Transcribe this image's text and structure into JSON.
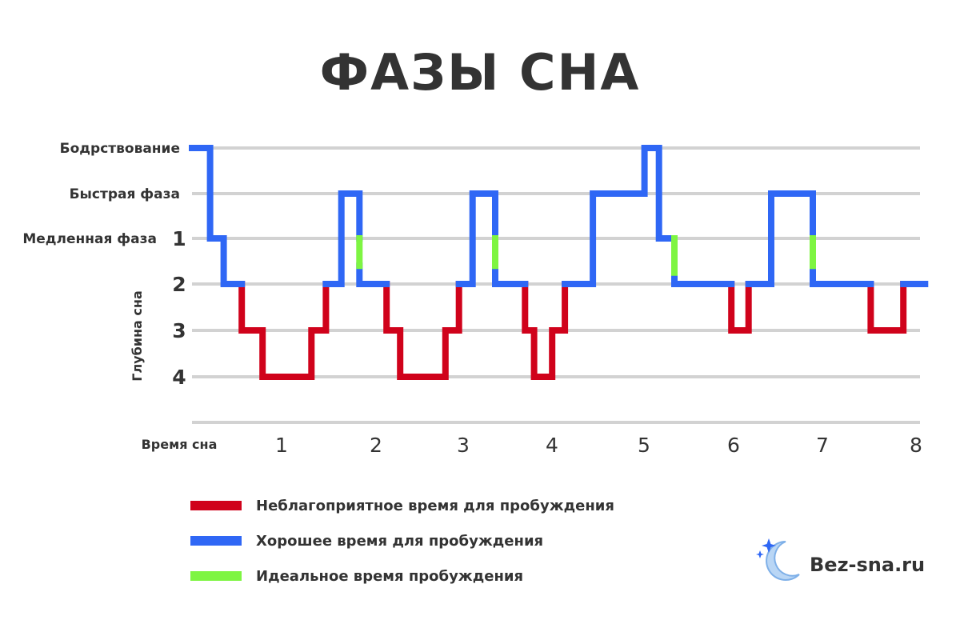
{
  "chart_data": {
    "type": "line",
    "title": "ФАЗЫ СНА",
    "xlabel": "Время сна",
    "ylabel": "Глубина сна",
    "x_ticks": [
      "1",
      "2",
      "3",
      "4",
      "5",
      "6",
      "7",
      "8"
    ],
    "xlim": [
      0,
      8
    ],
    "y_levels": [
      {
        "value": -2,
        "label": "Бодрствование"
      },
      {
        "value": -1,
        "label": "Быстрая фаза"
      },
      {
        "value": 1,
        "label": "Медленная фаза",
        "number": "1"
      },
      {
        "value": 2,
        "label": "",
        "number": "2"
      },
      {
        "value": 3,
        "label": "",
        "number": "3"
      },
      {
        "value": 4,
        "label": "",
        "number": "4"
      }
    ],
    "grid": true,
    "colors": {
      "unfavorable": "#d0021b",
      "good": "#2f67f5",
      "ideal": "#7ef542",
      "grid": "#d2d2d2",
      "text": "#333333"
    },
    "segments": [
      {
        "category": "good",
        "points": [
          [
            0.0,
            -2
          ],
          [
            0.2,
            -2
          ],
          [
            0.2,
            1
          ],
          [
            0.35,
            1
          ],
          [
            0.35,
            2
          ],
          [
            0.55,
            2
          ]
        ]
      },
      {
        "category": "unfavorable",
        "points": [
          [
            0.55,
            2
          ],
          [
            0.55,
            3
          ],
          [
            0.78,
            3
          ],
          [
            0.78,
            4
          ],
          [
            1.32,
            4
          ],
          [
            1.32,
            3
          ],
          [
            1.48,
            3
          ],
          [
            1.48,
            2
          ]
        ]
      },
      {
        "category": "good",
        "points": [
          [
            1.48,
            2
          ],
          [
            1.65,
            2
          ],
          [
            1.65,
            -1
          ],
          [
            1.85,
            -1
          ],
          [
            1.85,
            1
          ]
        ]
      },
      {
        "category": "ideal",
        "points": [
          [
            1.85,
            1
          ],
          [
            1.85,
            1.6
          ]
        ]
      },
      {
        "category": "good",
        "points": [
          [
            1.85,
            1.6
          ],
          [
            1.85,
            2
          ],
          [
            2.15,
            2
          ]
        ]
      },
      {
        "category": "unfavorable",
        "points": [
          [
            2.15,
            2
          ],
          [
            2.15,
            3
          ],
          [
            2.3,
            3
          ],
          [
            2.3,
            4
          ],
          [
            2.8,
            4
          ],
          [
            2.8,
            3
          ],
          [
            2.95,
            3
          ],
          [
            2.95,
            2
          ]
        ]
      },
      {
        "category": "good",
        "points": [
          [
            2.95,
            2
          ],
          [
            3.1,
            2
          ],
          [
            3.1,
            -1
          ],
          [
            3.35,
            -1
          ],
          [
            3.35,
            1
          ]
        ]
      },
      {
        "category": "ideal",
        "points": [
          [
            3.35,
            1
          ],
          [
            3.35,
            1.6
          ]
        ]
      },
      {
        "category": "good",
        "points": [
          [
            3.35,
            1.6
          ],
          [
            3.35,
            2
          ],
          [
            3.68,
            2
          ]
        ]
      },
      {
        "category": "unfavorable",
        "points": [
          [
            3.68,
            2
          ],
          [
            3.68,
            3
          ],
          [
            3.78,
            3
          ],
          [
            3.78,
            4
          ],
          [
            3.98,
            4
          ],
          [
            3.98,
            3
          ],
          [
            4.12,
            3
          ],
          [
            4.12,
            2
          ]
        ]
      },
      {
        "category": "good",
        "points": [
          [
            4.12,
            2
          ],
          [
            4.43,
            2
          ],
          [
            4.43,
            -1
          ],
          [
            5.0,
            -1
          ],
          [
            5.0,
            -2
          ],
          [
            5.16,
            -2
          ],
          [
            5.16,
            1
          ],
          [
            5.33,
            1
          ]
        ]
      },
      {
        "category": "ideal",
        "points": [
          [
            5.33,
            1
          ],
          [
            5.33,
            1.75
          ]
        ]
      },
      {
        "category": "good",
        "points": [
          [
            5.33,
            1.75
          ],
          [
            5.33,
            2
          ],
          [
            5.96,
            2
          ]
        ]
      },
      {
        "category": "unfavorable",
        "points": [
          [
            5.96,
            2
          ],
          [
            5.96,
            3
          ],
          [
            6.15,
            3
          ],
          [
            6.15,
            2
          ]
        ]
      },
      {
        "category": "good",
        "points": [
          [
            6.15,
            2
          ],
          [
            6.4,
            2
          ],
          [
            6.4,
            -1
          ],
          [
            6.86,
            -1
          ],
          [
            6.86,
            1
          ]
        ]
      },
      {
        "category": "ideal",
        "points": [
          [
            6.86,
            1
          ],
          [
            6.86,
            1.6
          ]
        ]
      },
      {
        "category": "good",
        "points": [
          [
            6.86,
            1.6
          ],
          [
            6.86,
            2
          ],
          [
            7.5,
            2
          ]
        ]
      },
      {
        "category": "unfavorable",
        "points": [
          [
            7.5,
            2
          ],
          [
            7.5,
            3
          ],
          [
            7.86,
            3
          ],
          [
            7.86,
            2
          ]
        ]
      },
      {
        "category": "good",
        "points": [
          [
            7.86,
            2
          ],
          [
            8.1,
            2
          ]
        ]
      }
    ],
    "legend": [
      {
        "category": "unfavorable",
        "label": "Неблагоприятное время для пробуждения"
      },
      {
        "category": "good",
        "label": "Хорошее время для пробуждения"
      },
      {
        "category": "ideal",
        "label": "Идеальное время пробуждения"
      }
    ],
    "legend_placement": "bottom-left"
  },
  "brand": {
    "name": "Bez-sna.ru",
    "logo_icon": "moon-stars-icon",
    "moon_color": "#b9d6f5"
  }
}
